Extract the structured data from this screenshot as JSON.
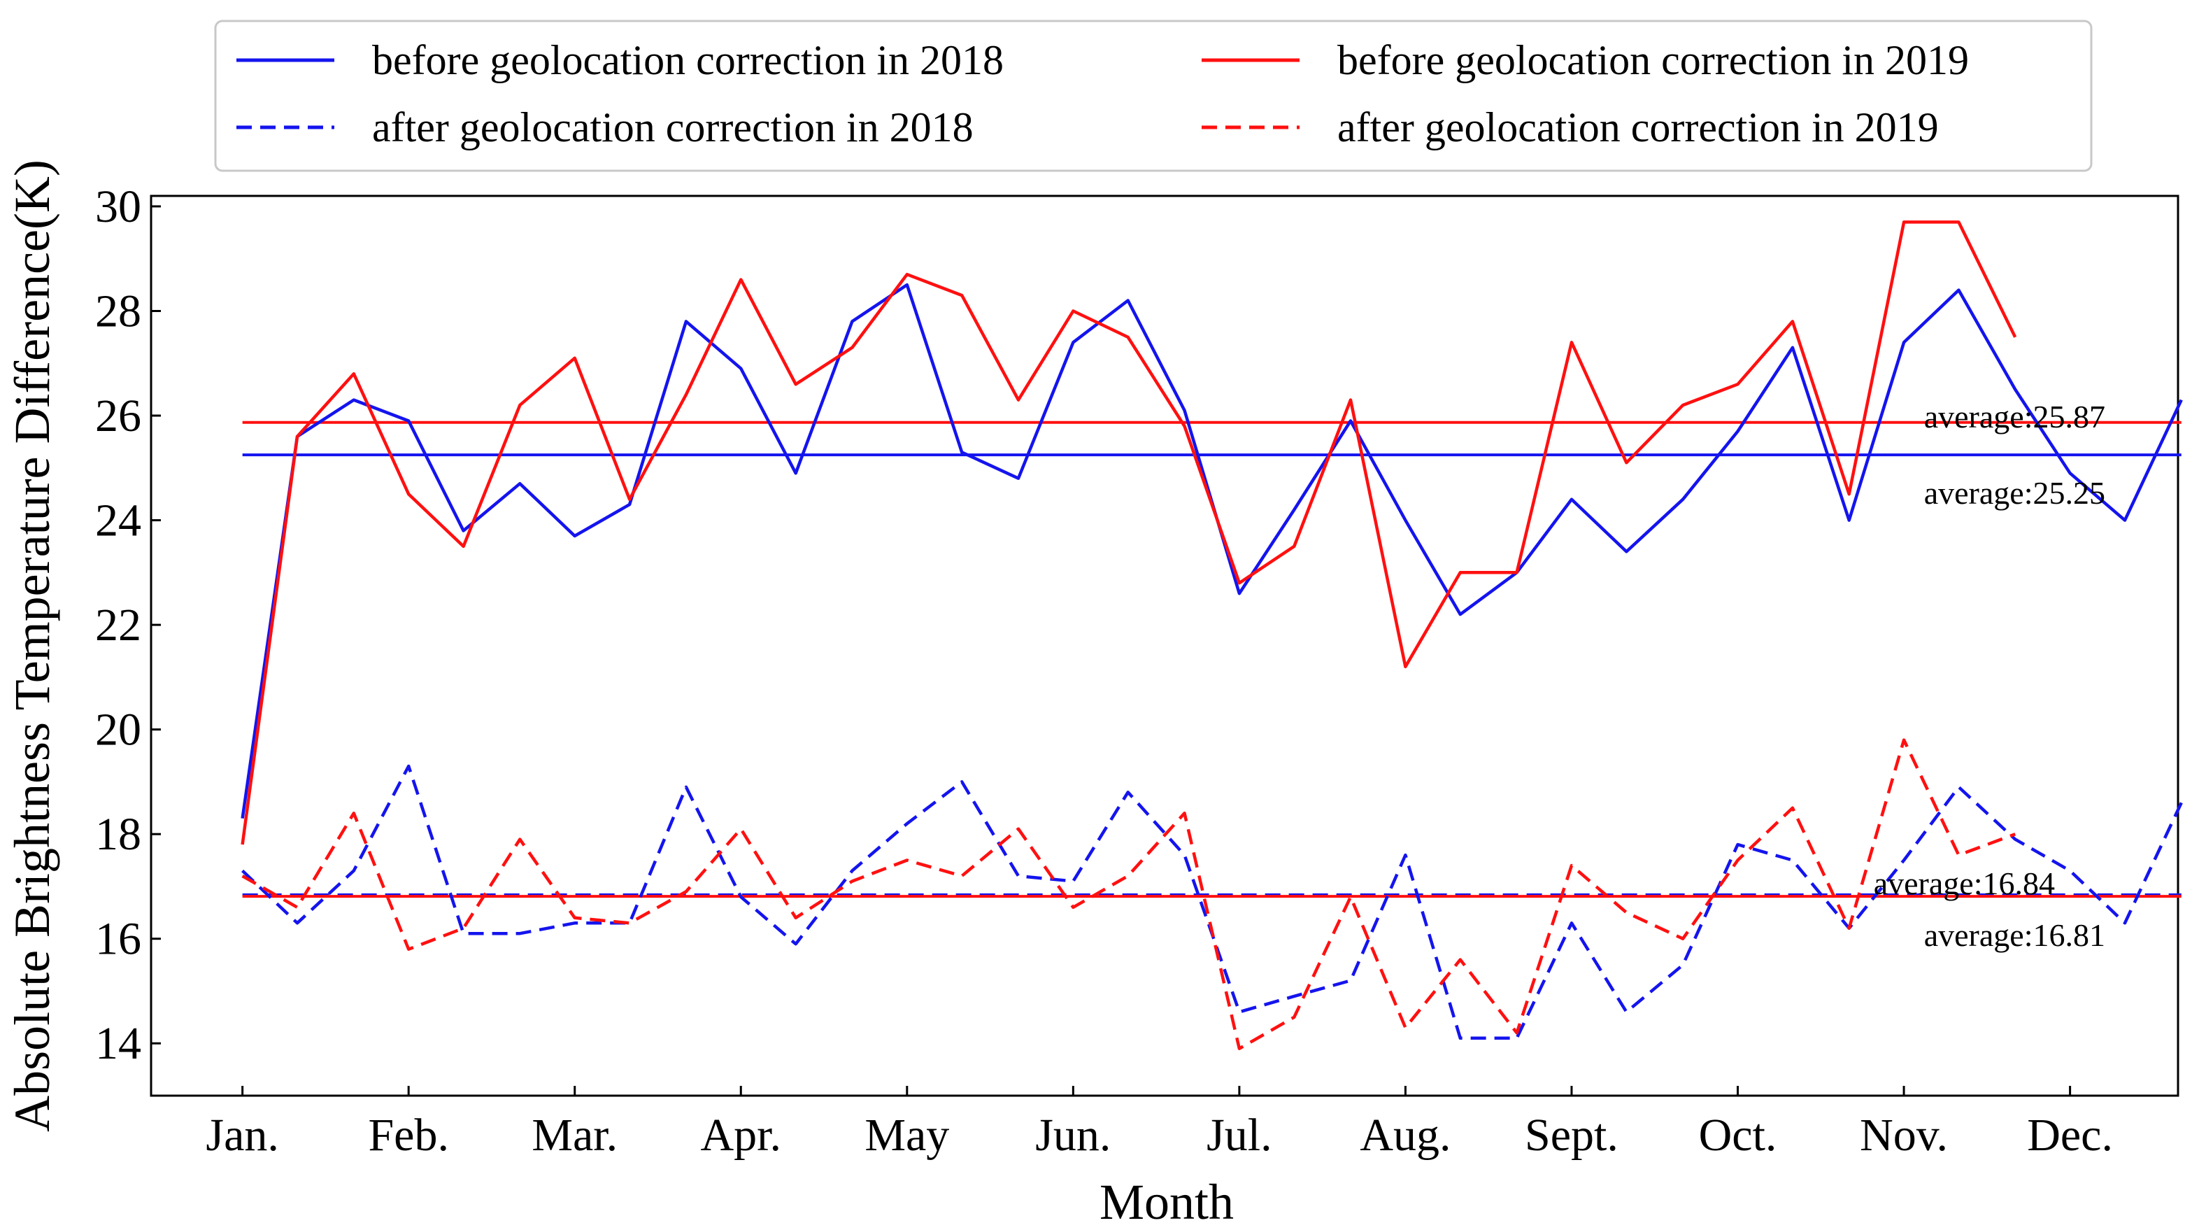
{
  "chart_data": {
    "type": "line",
    "title": "",
    "xlabel": "Month",
    "ylabel": "Absolute Brightness Temperature Difference(K)",
    "ylim": [
      13.0,
      30.2
    ],
    "xlim": [
      -0.55,
      11.65
    ],
    "yticks": [
      14,
      16,
      18,
      20,
      22,
      24,
      26,
      28,
      30
    ],
    "categories": [
      "Jan.",
      "Feb.",
      "Mar.",
      "Apr.",
      "May",
      "Jun.",
      "Jul.",
      "Aug.",
      "Sept.",
      "Oct.",
      "Nov.",
      "Dec."
    ],
    "legend_position": "top-center, outside plot area",
    "grid": false,
    "series": [
      {
        "name": "before geolocation correction in 2018",
        "color": "#1414ee",
        "dash": "solid",
        "x": [
          0,
          0.33,
          0.67,
          1,
          1.33,
          1.67,
          2,
          2.33,
          2.67,
          3,
          3.33,
          3.67,
          4,
          4.33,
          4.67,
          5,
          5.33,
          5.67,
          6,
          6.33,
          6.67,
          7,
          7.33,
          7.67,
          8,
          8.33,
          8.67,
          9,
          9.33,
          9.67,
          10,
          10.33,
          10.67,
          11,
          11.33,
          11.67
        ],
        "values": [
          18.3,
          25.6,
          26.3,
          25.9,
          23.8,
          24.7,
          23.7,
          24.3,
          27.8,
          26.9,
          24.9,
          27.8,
          28.5,
          25.3,
          24.8,
          27.4,
          28.2,
          26.1,
          22.6,
          24.2,
          25.9,
          24.0,
          22.2,
          23.0,
          24.4,
          23.4,
          24.4,
          25.7,
          27.3,
          24.0,
          27.4,
          28.4,
          26.5,
          24.9,
          24.0,
          26.3
        ]
      },
      {
        "name": "before geolocation correction in 2019",
        "color": "#ff1010",
        "dash": "solid",
        "x": [
          0,
          0.33,
          0.67,
          1,
          1.33,
          1.67,
          2,
          2.33,
          2.67,
          3,
          3.33,
          3.67,
          4,
          4.33,
          4.67,
          5,
          5.33,
          5.67,
          6,
          6.33,
          6.67,
          7,
          7.33,
          7.67,
          8,
          8.33,
          8.67,
          9,
          9.33,
          9.67,
          10,
          10.33,
          10.67
        ],
        "values": [
          17.8,
          25.6,
          26.8,
          24.5,
          23.5,
          26.2,
          27.1,
          24.4,
          26.4,
          28.6,
          26.6,
          27.3,
          28.7,
          28.3,
          26.3,
          28.0,
          27.5,
          25.8,
          22.8,
          23.5,
          26.3,
          21.2,
          23.0,
          23.0,
          27.4,
          25.1,
          26.2,
          26.6,
          27.8,
          24.5,
          29.7,
          29.7,
          27.5
        ]
      },
      {
        "name": "after geolocation correction in 2018",
        "color": "#1414ee",
        "dash": "dashed",
        "x": [
          0,
          0.33,
          0.67,
          1,
          1.33,
          1.67,
          2,
          2.33,
          2.67,
          3,
          3.33,
          3.67,
          4,
          4.33,
          4.67,
          5,
          5.33,
          5.67,
          6,
          6.33,
          6.67,
          7,
          7.33,
          7.67,
          8,
          8.33,
          8.67,
          9,
          9.33,
          9.67,
          10,
          10.33,
          10.67,
          11,
          11.33,
          11.67
        ],
        "values": [
          17.3,
          16.3,
          17.3,
          19.3,
          16.1,
          16.1,
          16.3,
          16.3,
          18.9,
          16.8,
          15.9,
          17.3,
          18.2,
          19.0,
          17.2,
          17.1,
          18.8,
          17.6,
          14.6,
          14.9,
          15.2,
          17.6,
          14.1,
          14.1,
          16.3,
          14.6,
          15.5,
          17.8,
          17.5,
          16.2,
          17.5,
          18.9,
          17.9,
          17.3,
          16.3,
          18.6
        ]
      },
      {
        "name": "after geolocation correction in 2019",
        "color": "#ff1010",
        "dash": "dashed",
        "x": [
          0,
          0.33,
          0.67,
          1,
          1.33,
          1.67,
          2,
          2.33,
          2.67,
          3,
          3.33,
          3.67,
          4,
          4.33,
          4.67,
          5,
          5.33,
          5.67,
          6,
          6.33,
          6.67,
          7,
          7.33,
          7.67,
          8,
          8.33,
          8.67,
          9,
          9.33,
          9.67,
          10,
          10.33,
          10.67
        ],
        "values": [
          17.2,
          16.6,
          18.4,
          15.8,
          16.2,
          17.9,
          16.4,
          16.3,
          16.9,
          18.1,
          16.4,
          17.1,
          17.5,
          17.2,
          18.1,
          16.6,
          17.2,
          18.4,
          13.9,
          14.5,
          16.8,
          14.3,
          15.6,
          14.2,
          17.4,
          16.5,
          16.0,
          17.5,
          18.5,
          16.2,
          19.8,
          17.6,
          18.0
        ]
      }
    ],
    "averages": [
      {
        "label": "average:25.87",
        "value": 25.87,
        "color": "#ff1010",
        "dash": "solid"
      },
      {
        "label": "average:25.25",
        "value": 25.25,
        "color": "#1414ee",
        "dash": "solid"
      },
      {
        "label": "average:16.84",
        "value": 16.84,
        "color": "#1414ee",
        "dash": "dashed"
      },
      {
        "label": "average:16.81",
        "value": 16.81,
        "color": "#ff1010",
        "dash": "solid"
      }
    ]
  }
}
